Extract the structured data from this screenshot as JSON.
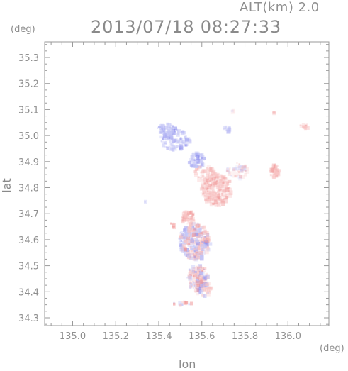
{
  "header": {
    "altitude": "ALT(km) 2.0",
    "timestamp": "2013/07/18 08:27:33"
  },
  "axes": {
    "x_label": "lon",
    "y_label": "lat",
    "x_unit": "(deg)",
    "y_unit": "(deg)",
    "x_ticks": [
      "135.0",
      "135.2",
      "135.4",
      "135.6",
      "135.8",
      "136.0"
    ],
    "y_ticks": [
      "35.3",
      "35.2",
      "35.1",
      "35.0",
      "34.9",
      "34.8",
      "34.7",
      "34.6",
      "34.5",
      "34.4",
      "34.3"
    ],
    "x_range": [
      134.87,
      136.19
    ],
    "y_range": [
      34.27,
      35.36
    ]
  },
  "colors": {
    "axis": "#9a9a9a",
    "approaching": "#8f90ee",
    "receding": "#ef8f8f"
  }
}
